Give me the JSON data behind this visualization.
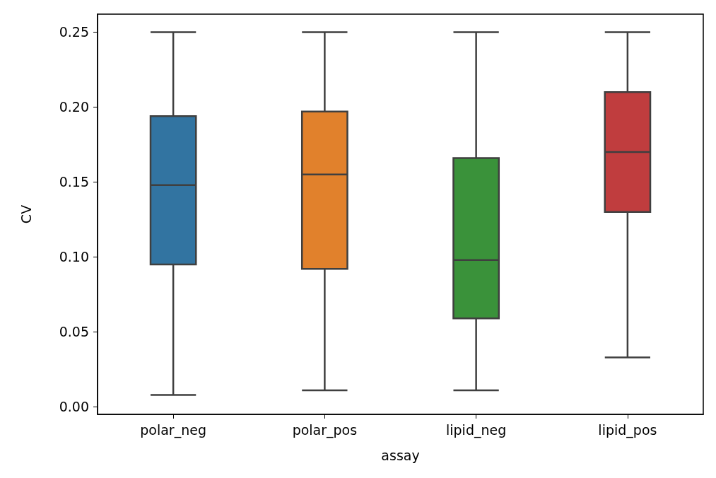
{
  "chart_data": {
    "type": "box",
    "xlabel": "assay",
    "ylabel": "CV",
    "categories": [
      "polar_neg",
      "polar_pos",
      "lipid_neg",
      "lipid_pos"
    ],
    "colors": [
      "#3274a1",
      "#e1812c",
      "#3a923a",
      "#c03d3e"
    ],
    "boxes": [
      {
        "low": 0.008,
        "q1": 0.095,
        "median": 0.148,
        "q3": 0.194,
        "high": 0.25
      },
      {
        "low": 0.011,
        "q1": 0.092,
        "median": 0.155,
        "q3": 0.197,
        "high": 0.25
      },
      {
        "low": 0.011,
        "q1": 0.059,
        "median": 0.098,
        "q3": 0.166,
        "high": 0.25
      },
      {
        "low": 0.033,
        "q1": 0.13,
        "median": 0.17,
        "q3": 0.21,
        "high": 0.25
      }
    ],
    "ylim": [
      -0.005,
      0.262
    ],
    "yticks": [
      {
        "value": 0,
        "label": "0.00"
      },
      {
        "value": 0.05,
        "label": "0.05"
      },
      {
        "value": 0.1,
        "label": "0.10"
      },
      {
        "value": 0.15,
        "label": "0.15"
      },
      {
        "value": 0.2,
        "label": "0.20"
      },
      {
        "value": 0.25,
        "label": "0.25"
      }
    ],
    "grid": false
  }
}
